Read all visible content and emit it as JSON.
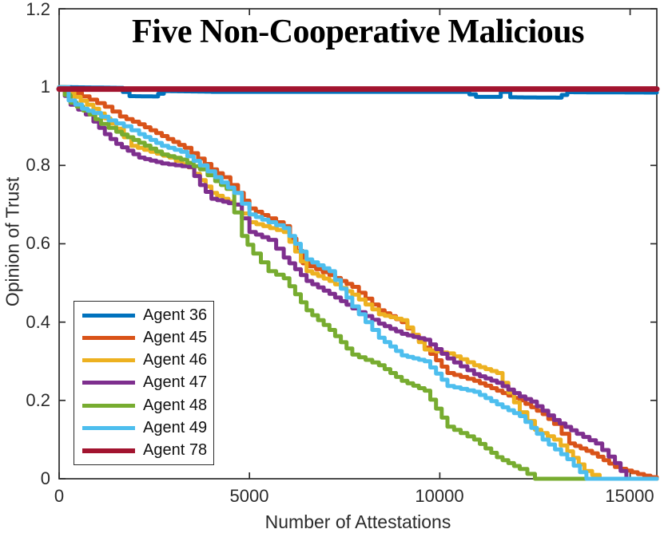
{
  "chart_data": {
    "type": "line",
    "title": "Five Non-Cooperative Malicious",
    "xlabel": "Number of Attestations",
    "ylabel": "Opinion of Trust",
    "xlim": [
      0,
      15700
    ],
    "ylim": [
      0,
      1.2
    ],
    "grid": false,
    "legend_position": "lower-left-inside",
    "x_ticks": [
      0,
      5000,
      10000,
      15000
    ],
    "x_tick_labels": [
      "0",
      "5000",
      "10000",
      "15000"
    ],
    "y_ticks": [
      0,
      0.2,
      0.4,
      0.6,
      0.8,
      1,
      1.2
    ],
    "y_tick_labels": [
      "0",
      "0.2",
      "0.4",
      "0.6",
      "0.8",
      "1",
      "1.2"
    ],
    "axis_color": "#2b2b2b",
    "series": [
      {
        "name": "Agent 36",
        "color": "#0072BD",
        "width": 5,
        "points": [
          [
            0,
            1.0
          ],
          [
            1500,
            0.998
          ],
          [
            1850,
            0.977
          ],
          [
            2450,
            0.976
          ],
          [
            2750,
            0.99
          ],
          [
            4000,
            0.988
          ],
          [
            10600,
            0.988
          ],
          [
            10950,
            0.975
          ],
          [
            11350,
            0.975
          ],
          [
            11600,
            0.988
          ],
          [
            11850,
            0.974
          ],
          [
            13050,
            0.973
          ],
          [
            13350,
            0.987
          ],
          [
            15700,
            0.986
          ]
        ]
      },
      {
        "name": "Agent 45",
        "color": "#D95319",
        "width": 5,
        "points": [
          [
            0,
            1.0
          ],
          [
            400,
            0.985
          ],
          [
            800,
            0.968
          ],
          [
            1200,
            0.95
          ],
          [
            1600,
            0.925
          ],
          [
            2100,
            0.905
          ],
          [
            2700,
            0.875
          ],
          [
            3300,
            0.845
          ],
          [
            4000,
            0.79
          ],
          [
            4300,
            0.77
          ],
          [
            4700,
            0.73
          ],
          [
            5000,
            0.69
          ],
          [
            5500,
            0.665
          ],
          [
            5900,
            0.645
          ],
          [
            6400,
            0.55
          ],
          [
            7100,
            0.52
          ],
          [
            7700,
            0.49
          ],
          [
            8400,
            0.43
          ],
          [
            9000,
            0.4
          ],
          [
            9600,
            0.335
          ],
          [
            10200,
            0.27
          ],
          [
            10900,
            0.25
          ],
          [
            11500,
            0.225
          ],
          [
            12100,
            0.2
          ],
          [
            12700,
            0.165
          ],
          [
            13000,
            0.14
          ],
          [
            13400,
            0.09
          ],
          [
            14000,
            0.065
          ],
          [
            14600,
            0.03
          ],
          [
            15200,
            0.012
          ],
          [
            15700,
            0.0
          ]
        ]
      },
      {
        "name": "Agent 46",
        "color": "#EDB120",
        "width": 5,
        "points": [
          [
            0,
            1.0
          ],
          [
            400,
            0.975
          ],
          [
            900,
            0.945
          ],
          [
            1200,
            0.92
          ],
          [
            1500,
            0.894
          ],
          [
            1900,
            0.85
          ],
          [
            2400,
            0.835
          ],
          [
            2900,
            0.82
          ],
          [
            3400,
            0.795
          ],
          [
            4000,
            0.73
          ],
          [
            4600,
            0.7
          ],
          [
            5000,
            0.655
          ],
          [
            5900,
            0.63
          ],
          [
            6500,
            0.53
          ],
          [
            7100,
            0.505
          ],
          [
            7700,
            0.47
          ],
          [
            8400,
            0.42
          ],
          [
            9000,
            0.405
          ],
          [
            9600,
            0.33
          ],
          [
            10200,
            0.32
          ],
          [
            10900,
            0.29
          ],
          [
            11500,
            0.27
          ],
          [
            12100,
            0.17
          ],
          [
            12500,
            0.125
          ],
          [
            13000,
            0.1
          ],
          [
            13350,
            0.07
          ],
          [
            13800,
            0.02
          ],
          [
            14200,
            0.0
          ],
          [
            15700,
            0.0
          ]
        ]
      },
      {
        "name": "Agent 47",
        "color": "#7E2F8E",
        "width": 5,
        "points": [
          [
            0,
            1.0
          ],
          [
            300,
            0.955
          ],
          [
            700,
            0.93
          ],
          [
            900,
            0.912
          ],
          [
            1200,
            0.88
          ],
          [
            1500,
            0.855
          ],
          [
            2100,
            0.82
          ],
          [
            2700,
            0.805
          ],
          [
            3400,
            0.796
          ],
          [
            3700,
            0.75
          ],
          [
            4000,
            0.715
          ],
          [
            4600,
            0.7
          ],
          [
            5000,
            0.63
          ],
          [
            5500,
            0.61
          ],
          [
            5900,
            0.565
          ],
          [
            6500,
            0.505
          ],
          [
            7100,
            0.472
          ],
          [
            7700,
            0.435
          ],
          [
            8400,
            0.396
          ],
          [
            9000,
            0.37
          ],
          [
            9600,
            0.355
          ],
          [
            10200,
            0.307
          ],
          [
            10900,
            0.267
          ],
          [
            11500,
            0.245
          ],
          [
            12100,
            0.21
          ],
          [
            12400,
            0.197
          ],
          [
            13000,
            0.15
          ],
          [
            13600,
            0.115
          ],
          [
            14100,
            0.09
          ],
          [
            14600,
            0.04
          ],
          [
            14900,
            0.0
          ],
          [
            15700,
            0.0
          ]
        ]
      },
      {
        "name": "Agent 48",
        "color": "#77AC30",
        "width": 5,
        "points": [
          [
            0,
            1.0
          ],
          [
            300,
            0.96
          ],
          [
            800,
            0.93
          ],
          [
            1100,
            0.906
          ],
          [
            1500,
            0.886
          ],
          [
            2100,
            0.858
          ],
          [
            2700,
            0.828
          ],
          [
            3200,
            0.815
          ],
          [
            3700,
            0.79
          ],
          [
            4100,
            0.76
          ],
          [
            4400,
            0.74
          ],
          [
            4800,
            0.62
          ],
          [
            5100,
            0.575
          ],
          [
            5500,
            0.53
          ],
          [
            5900,
            0.512
          ],
          [
            6500,
            0.43
          ],
          [
            7100,
            0.38
          ],
          [
            7700,
            0.317
          ],
          [
            8400,
            0.29
          ],
          [
            9000,
            0.25
          ],
          [
            9600,
            0.225
          ],
          [
            10200,
            0.133
          ],
          [
            10900,
            0.1
          ],
          [
            11500,
            0.055
          ],
          [
            12100,
            0.025
          ],
          [
            12500,
            0.0
          ],
          [
            15700,
            0.0
          ]
        ]
      },
      {
        "name": "Agent 49",
        "color": "#4DBEEE",
        "width": 5,
        "points": [
          [
            0,
            1.0
          ],
          [
            250,
            0.966
          ],
          [
            600,
            0.945
          ],
          [
            900,
            0.934
          ],
          [
            1300,
            0.915
          ],
          [
            1700,
            0.9
          ],
          [
            2100,
            0.88
          ],
          [
            2700,
            0.85
          ],
          [
            3200,
            0.835
          ],
          [
            3700,
            0.8
          ],
          [
            4100,
            0.77
          ],
          [
            4600,
            0.73
          ],
          [
            5000,
            0.675
          ],
          [
            5500,
            0.655
          ],
          [
            5900,
            0.64
          ],
          [
            6500,
            0.56
          ],
          [
            7100,
            0.53
          ],
          [
            7700,
            0.44
          ],
          [
            8400,
            0.36
          ],
          [
            9000,
            0.315
          ],
          [
            9600,
            0.3
          ],
          [
            10200,
            0.237
          ],
          [
            10900,
            0.222
          ],
          [
            11500,
            0.19
          ],
          [
            12100,
            0.16
          ],
          [
            12700,
            0.1
          ],
          [
            13350,
            0.05
          ],
          [
            13850,
            0.0
          ],
          [
            15700,
            0.0
          ]
        ]
      },
      {
        "name": "Agent 78",
        "color": "#A2142F",
        "width": 7,
        "points": [
          [
            0,
            0.995
          ],
          [
            15700,
            0.995
          ]
        ]
      }
    ]
  }
}
